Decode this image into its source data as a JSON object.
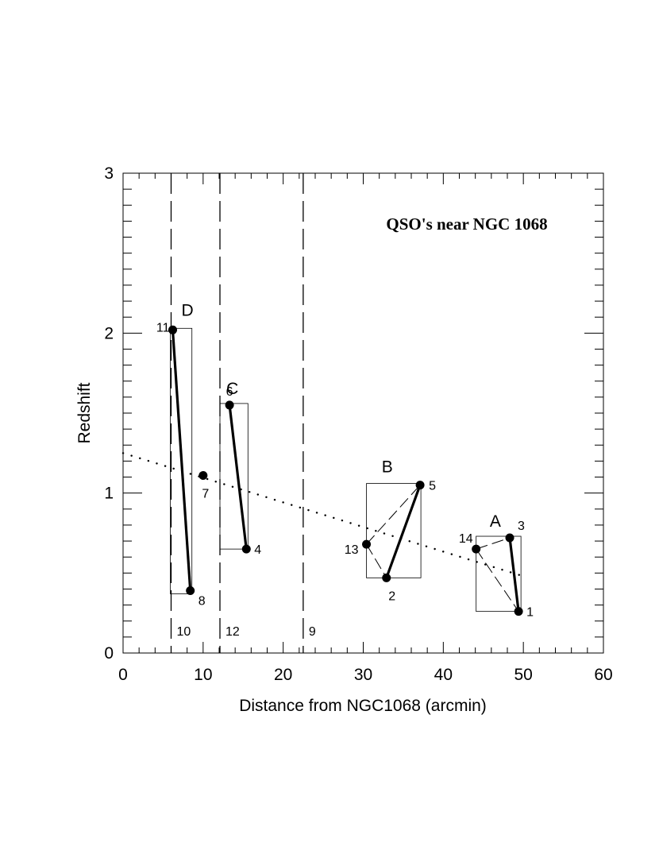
{
  "chart_data": {
    "type": "scatter",
    "title": "QSO's near  NGC 1068",
    "xlabel": "Distance from NGC1068 (arcmin)",
    "ylabel": "Redshift",
    "xlim": [
      0,
      60
    ],
    "ylim": [
      0,
      3
    ],
    "xticks": [
      0,
      10,
      20,
      30,
      40,
      50,
      60
    ],
    "yticks": [
      0,
      1,
      2,
      3
    ],
    "grid": false,
    "points": [
      {
        "label": "1",
        "x": 49.4,
        "y": 0.26
      },
      {
        "label": "2",
        "x": 32.9,
        "y": 0.47
      },
      {
        "label": "3",
        "x": 48.3,
        "y": 0.72
      },
      {
        "label": "4",
        "x": 15.4,
        "y": 0.65
      },
      {
        "label": "5",
        "x": 37.1,
        "y": 1.05
      },
      {
        "label": "6",
        "x": 13.3,
        "y": 1.55
      },
      {
        "label": "7",
        "x": 10.0,
        "y": 1.11
      },
      {
        "label": "8",
        "x": 8.4,
        "y": 0.39
      },
      {
        "label": "11",
        "x": 6.2,
        "y": 2.02
      },
      {
        "label": "13",
        "x": 30.4,
        "y": 0.68
      },
      {
        "label": "14",
        "x": 44.1,
        "y": 0.65
      }
    ],
    "dashed_vertical_lines": [
      {
        "label": "10",
        "x": 6.0
      },
      {
        "label": "12",
        "x": 12.1
      },
      {
        "label": "9",
        "x": 22.5
      }
    ],
    "groups": [
      {
        "label": "A",
        "x_range": [
          44.1,
          49.7
        ],
        "y_range": [
          0.26,
          0.73
        ]
      },
      {
        "label": "B",
        "x_range": [
          30.4,
          37.2
        ],
        "y_range": [
          0.47,
          1.06
        ]
      },
      {
        "label": "C",
        "x_range": [
          12.1,
          15.6
        ],
        "y_range": [
          0.65,
          1.56
        ]
      },
      {
        "label": "D",
        "x_range": [
          5.9,
          8.6
        ],
        "y_range": [
          0.37,
          2.03
        ]
      }
    ],
    "solid_links": [
      [
        "11",
        "8"
      ],
      [
        "6",
        "4"
      ],
      [
        "2",
        "5"
      ],
      [
        "3",
        "1"
      ]
    ],
    "dashed_links": [
      [
        "13",
        "5"
      ],
      [
        "13",
        "2"
      ],
      [
        "14",
        "3"
      ],
      [
        "14",
        "1"
      ]
    ],
    "trend_line": {
      "style": "dotted",
      "x": [
        0,
        50
      ],
      "y": [
        1.25,
        0.48
      ]
    }
  }
}
